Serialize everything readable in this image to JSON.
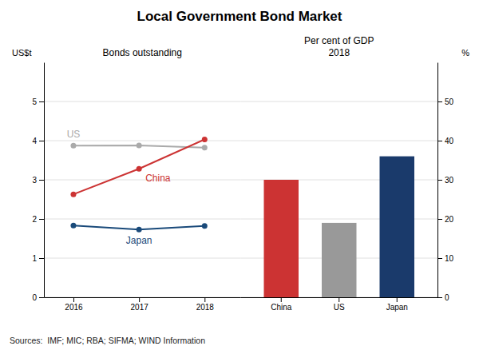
{
  "chart_data": [
    {
      "type": "line",
      "title": "Local Government Bond Market",
      "subtitle": "Bonds outstanding",
      "y_label": "US$t",
      "x": [
        2016,
        2017,
        2018
      ],
      "xlim": [
        2015.55,
        2018.55
      ],
      "xticks": [
        2016,
        2017,
        2018
      ],
      "ylim": [
        0,
        6
      ],
      "yticks": [
        0,
        1,
        2,
        3,
        4,
        5
      ],
      "grid": true,
      "marker": "circle",
      "series": [
        {
          "name": "US",
          "color": "#aaaaaa",
          "values": [
            3.87,
            3.88,
            3.82
          ]
        },
        {
          "name": "China",
          "color": "#cc3333",
          "values": [
            2.63,
            3.28,
            4.03
          ]
        },
        {
          "name": "Japan",
          "color": "#1a4a7a",
          "values": [
            1.83,
            1.73,
            1.82
          ]
        }
      ],
      "annotations": [
        "Sources:  IMF; MIC; RBA; SIFMA; WIND Information"
      ]
    },
    {
      "type": "bar",
      "subtitle": "Per cent of GDP\n2018",
      "y_label": "%",
      "categories": [
        "China",
        "US",
        "Japan"
      ],
      "values": [
        30,
        19,
        36
      ],
      "colors": [
        "#cc3333",
        "#999999",
        "#1a3a6b"
      ],
      "ylim": [
        0,
        60
      ],
      "yticks": [
        0,
        10,
        20,
        30,
        40,
        50
      ],
      "grid": true
    }
  ]
}
